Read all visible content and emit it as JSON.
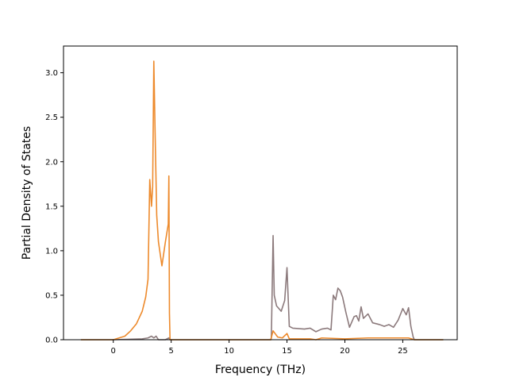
{
  "chart_data": {
    "type": "line",
    "title": "",
    "xlabel": "Frequency (THz)",
    "ylabel": "Partial Density of States",
    "xlim": [
      -4.3,
      29.7
    ],
    "ylim": [
      0,
      3.3
    ],
    "xticks": [
      0,
      5,
      10,
      15,
      20,
      25
    ],
    "yticks": [
      0.0,
      0.5,
      1.0,
      1.5,
      2.0,
      2.5,
      3.0
    ],
    "xtick_labels": [
      "0",
      "5",
      "10",
      "15",
      "20",
      "25"
    ],
    "ytick_labels": [
      "0.0",
      "0.5",
      "1.0",
      "1.5",
      "2.0",
      "2.5",
      "3.0"
    ],
    "grid": false,
    "legend": "none",
    "series": [
      {
        "color": "#8c7a7c",
        "x": [
          -2.8,
          0,
          2.5,
          3.0,
          3.3,
          3.5,
          3.7,
          3.9,
          4.5,
          4.8,
          4.9,
          13.6,
          13.65,
          13.8,
          13.9,
          14.1,
          14.5,
          14.8,
          15.0,
          15.2,
          15.5,
          16.5,
          17.0,
          17.5,
          18.0,
          18.5,
          18.8,
          19.0,
          19.2,
          19.4,
          19.6,
          19.8,
          20.1,
          20.4,
          20.8,
          21.0,
          21.2,
          21.4,
          21.6,
          22.0,
          22.4,
          23.0,
          23.4,
          23.8,
          24.2,
          24.6,
          25.0,
          25.3,
          25.5,
          25.7,
          25.9,
          26.0,
          28.5
        ],
        "y": [
          0.0,
          0.0,
          0.01,
          0.02,
          0.04,
          0.02,
          0.04,
          0.0,
          0.0,
          0.02,
          0.0,
          0.0,
          0.02,
          1.17,
          0.5,
          0.38,
          0.32,
          0.44,
          0.81,
          0.15,
          0.13,
          0.12,
          0.13,
          0.09,
          0.12,
          0.13,
          0.11,
          0.5,
          0.45,
          0.58,
          0.55,
          0.48,
          0.3,
          0.14,
          0.26,
          0.27,
          0.21,
          0.37,
          0.24,
          0.29,
          0.19,
          0.17,
          0.15,
          0.17,
          0.14,
          0.22,
          0.35,
          0.28,
          0.36,
          0.15,
          0.03,
          0.0,
          0.0
        ]
      },
      {
        "color": "#ed8a2c",
        "x": [
          -2.8,
          0,
          0.5,
          1.0,
          1.5,
          2.0,
          2.5,
          2.8,
          3.0,
          3.15,
          3.3,
          3.4,
          3.5,
          3.6,
          3.75,
          3.9,
          4.2,
          4.5,
          4.75,
          4.8,
          4.85,
          4.9,
          13.6,
          13.8,
          14.2,
          14.6,
          15.0,
          15.2,
          15.5,
          17.0,
          17.5,
          18.0,
          20.0,
          22.0,
          25.5,
          26.0,
          28.5
        ],
        "y": [
          0.0,
          0.0,
          0.02,
          0.04,
          0.1,
          0.18,
          0.32,
          0.48,
          0.68,
          1.8,
          1.5,
          1.72,
          3.13,
          2.4,
          1.4,
          1.1,
          0.83,
          1.1,
          1.3,
          1.84,
          0.3,
          0.0,
          0.0,
          0.1,
          0.03,
          0.02,
          0.07,
          0.01,
          0.01,
          0.01,
          0.0,
          0.02,
          0.01,
          0.02,
          0.02,
          0.0,
          0.0
        ]
      }
    ]
  }
}
